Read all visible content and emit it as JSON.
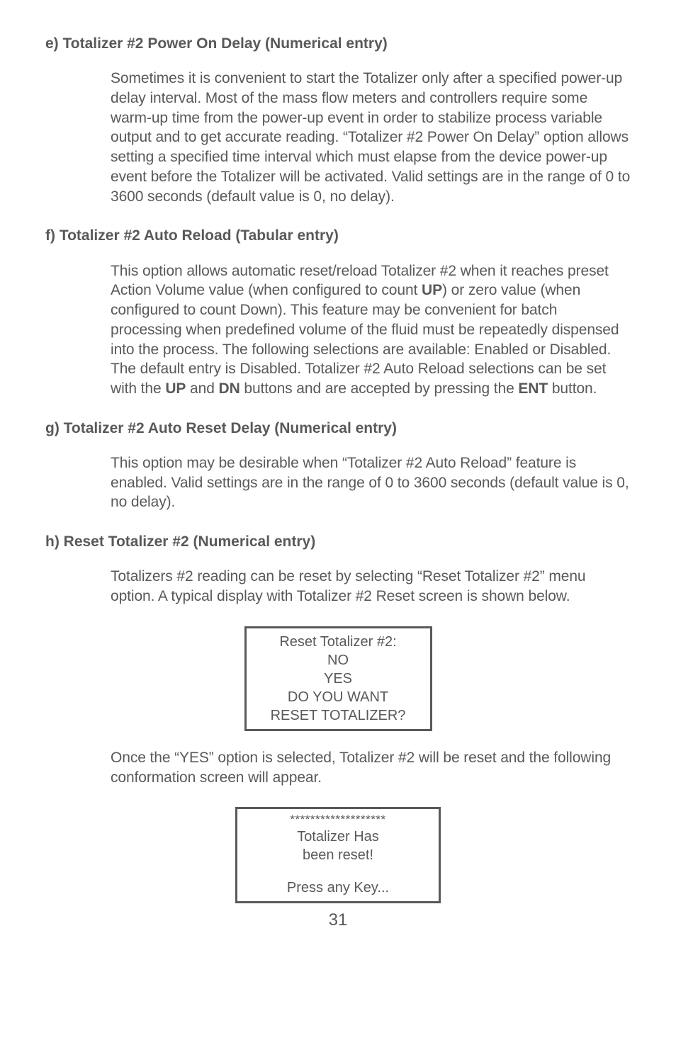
{
  "section_e": {
    "heading": "e) Totalizer #2 Power On Delay (Numerical entry)",
    "para": "Sometimes it is convenient to start the Totalizer only after a specified power-up delay interval. Most of the mass flow meters and controllers require some warm-up time from the power-up event in order to stabilize process  variable output and to get accurate reading. “Totalizer #2 Power On Delay” option allows setting a specified time interval which must elapse from the device power-up event before the Totalizer will be activated. Valid settings are in the range of 0 to 3600 seconds (default value is 0, no delay)."
  },
  "section_f": {
    "heading": "f) Totalizer #2 Auto Reload (Tabular entry)",
    "para_pre": "This option allows automatic reset/reload Totalizer #2 when it reaches preset Action Volume value (when configured to count ",
    "up": "UP",
    "para_mid1": ") or zero value (when configured to count Down). This feature may be convenient for batch processing when predefined volume of the fluid must be repeatedly dispensed into the process. The following selections are available: Enabled or Disabled. The default entry is Disabled. Totalizer #2 Auto Reload selections can be set with the ",
    "up2": "UP",
    "and": " and ",
    "dn": "DN",
    "para_mid2": " buttons and are accepted by pressing the ",
    "ent": "ENT",
    "para_post": " button."
  },
  "section_g": {
    "heading": "g) Totalizer #2 Auto Reset Delay (Numerical entry)",
    "para": "This option may be desirable when “Totalizer #2 Auto Reload” feature is enabled. Valid settings are in the range of 0 to 3600 seconds (default value is 0, no delay)."
  },
  "section_h": {
    "heading": "h) Reset Totalizer #2 (Numerical entry)",
    "para1": "Totalizers #2 reading can be reset by selecting  “Reset Totalizer #2” menu option. A typical display with Totalizer #2 Reset screen is shown below.",
    "display1": {
      "l1": "Reset Totalizer #2:",
      "l2": "NO",
      "l3": "YES",
      "l4": "DO YOU WANT",
      "l5": "RESET TOTALIZER?"
    },
    "para2": "Once the “YES” option is selected, Totalizer #2 will be reset and the following conformation screen will appear.",
    "display2": {
      "l1": "*******************",
      "l2": "Totalizer Has",
      "l3": "been reset!",
      "l4": "Press any Key..."
    }
  },
  "pagenum": "31",
  "colors": {
    "text": "#58595b",
    "background": "#ffffff",
    "border": "#58595b"
  }
}
